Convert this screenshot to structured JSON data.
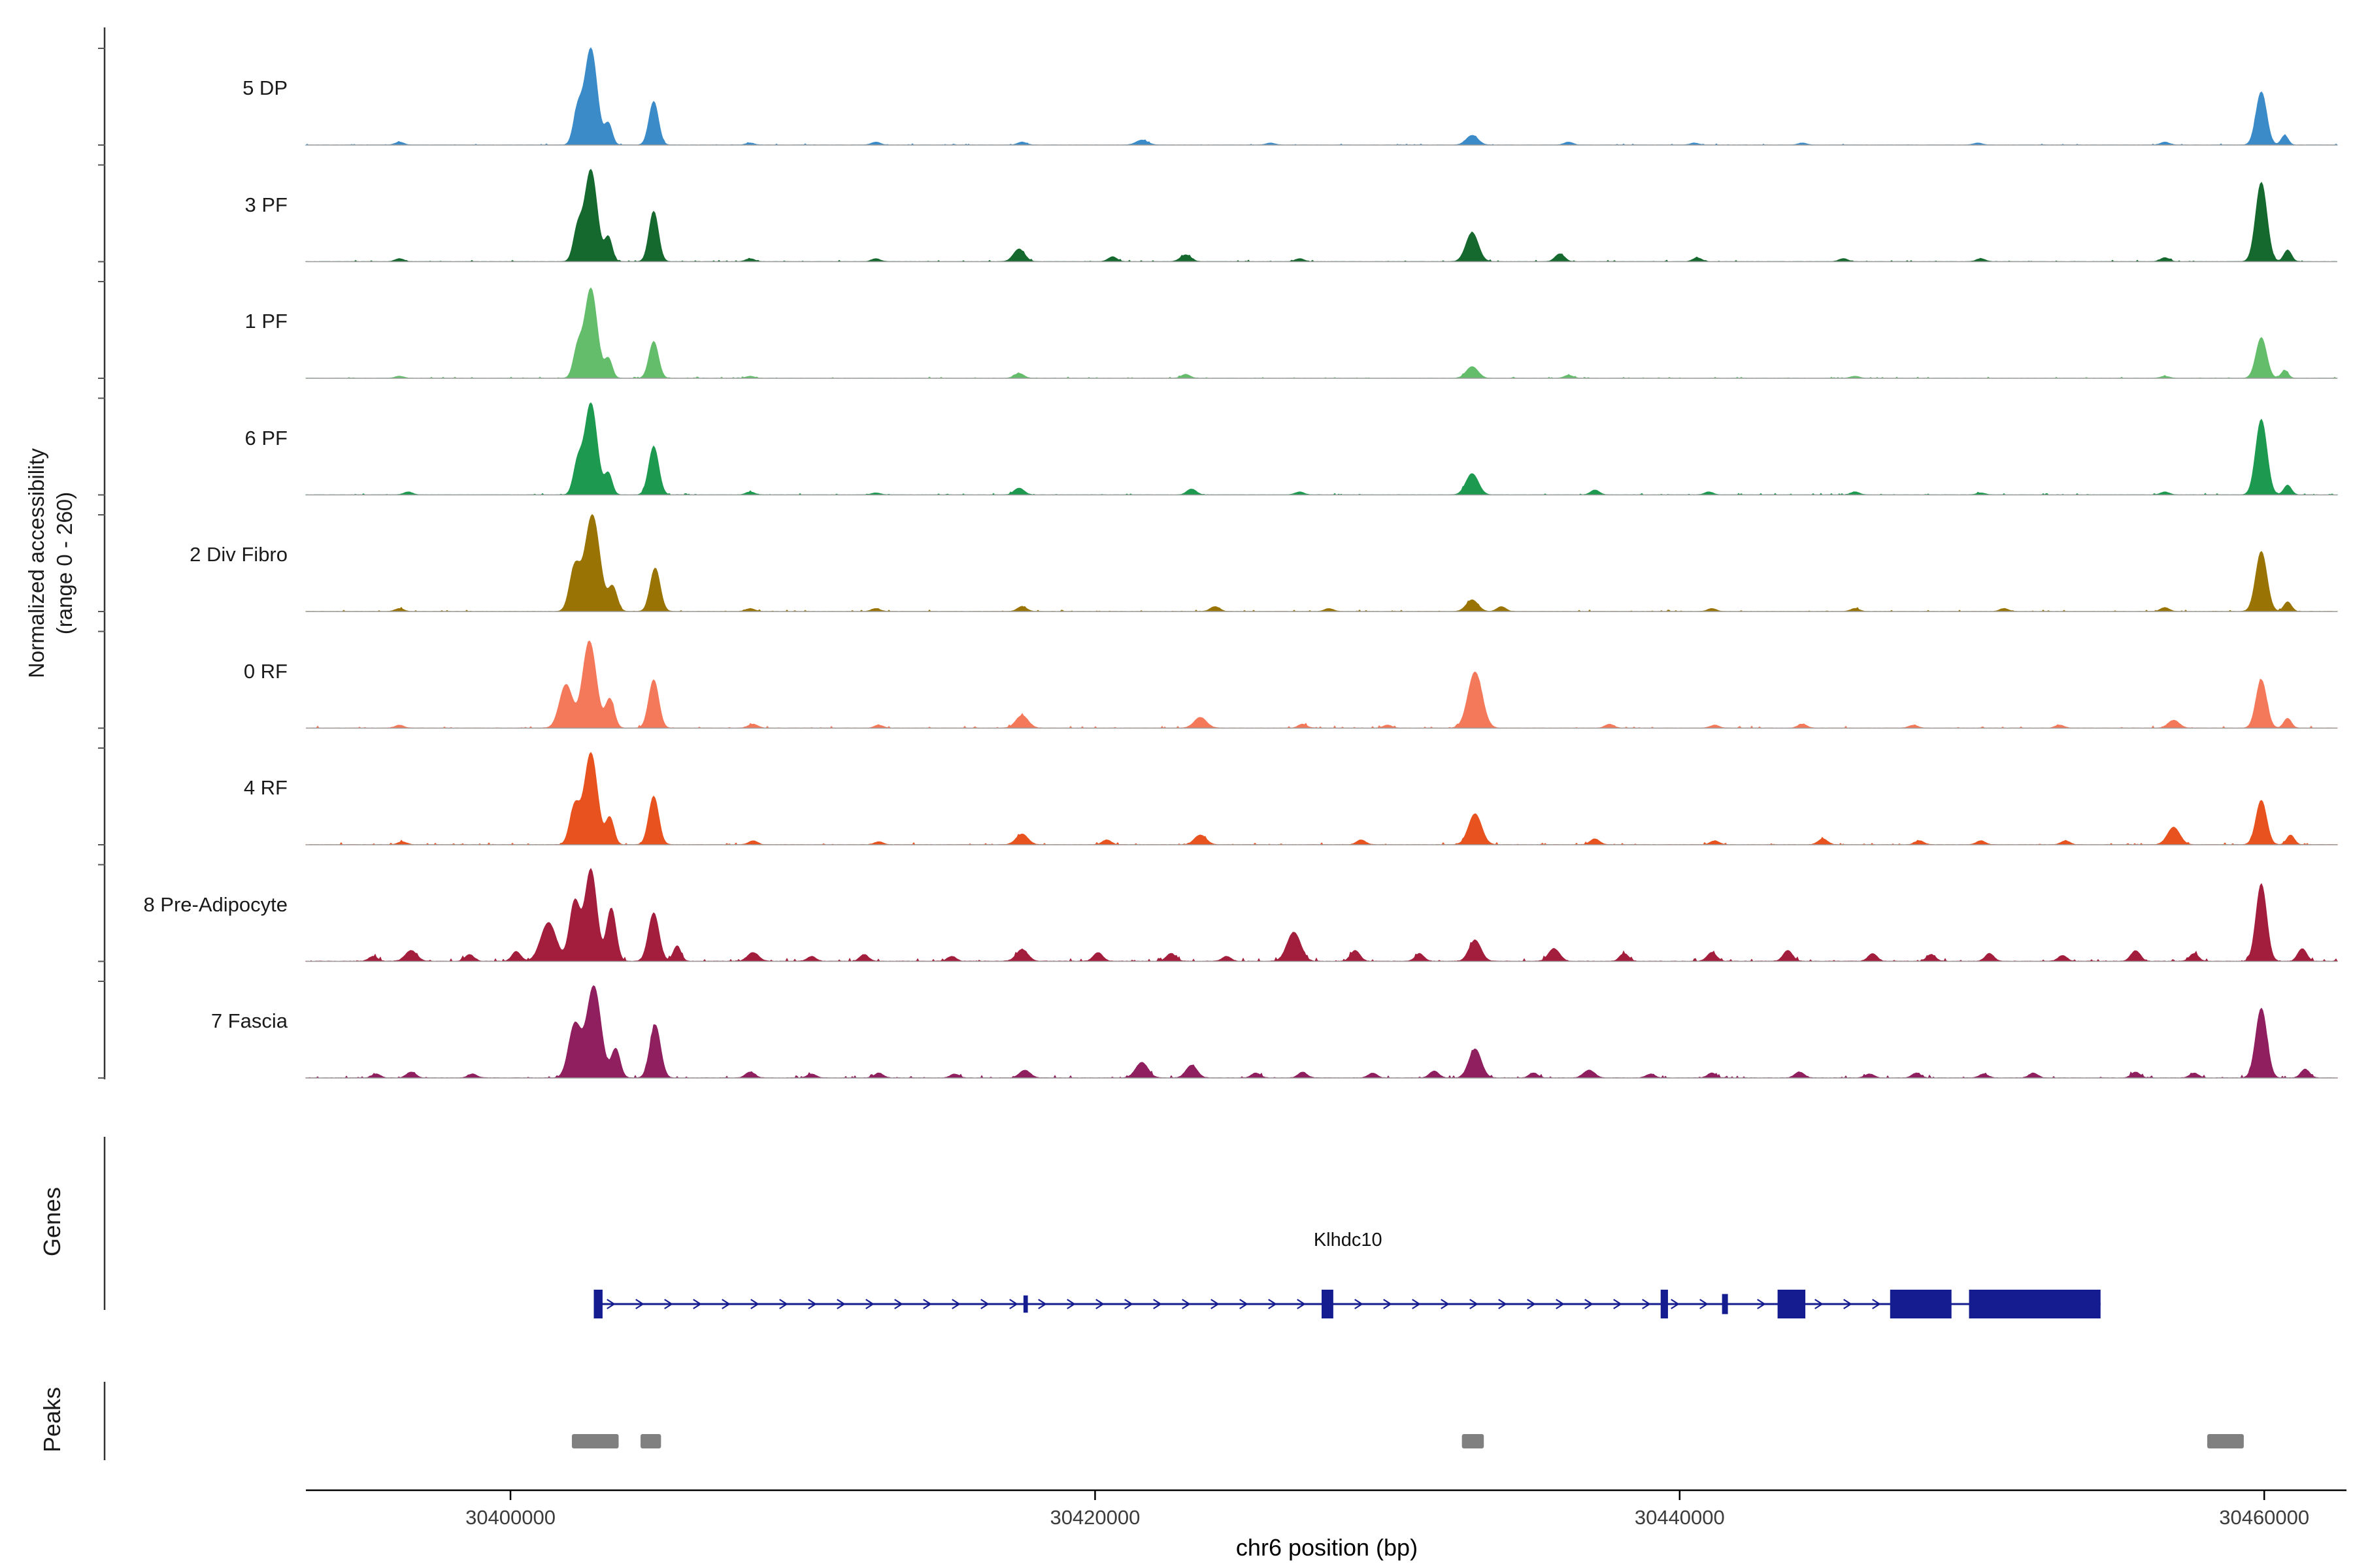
{
  "figure": {
    "y_axis_label_line1": "Normalized accessibility",
    "y_axis_label_line2": "(range 0 - 260)",
    "x_axis_title": "chr6 position (bp)",
    "genes_section_label": "Genes",
    "peaks_section_label": "Peaks"
  },
  "chart_data": {
    "type": "area",
    "title": "",
    "xlabel": "chr6 position (bp)",
    "ylabel": "Normalized accessibility (range 0 - 260)",
    "xlim": [
      30393000,
      30462500
    ],
    "x_ticks": [
      30400000,
      30420000,
      30440000,
      30460000
    ],
    "y_range_per_track": [
      0,
      260
    ],
    "legend_position": "left-track-labels",
    "grid": false,
    "peak_format": "[center_bp, sigma_bp, height_fraction_of_track_max]",
    "tracks": [
      {
        "label": "5 DP",
        "color": "#3b8bc9",
        "noise": 0.012,
        "peaks": [
          [
            30402300,
            150,
            0.35
          ],
          [
            30402750,
            210,
            1.0
          ],
          [
            30403350,
            130,
            0.22
          ],
          [
            30404900,
            160,
            0.45
          ],
          [
            30396200,
            150,
            0.03
          ],
          [
            30408200,
            150,
            0.02
          ],
          [
            30412500,
            150,
            0.03
          ],
          [
            30417500,
            150,
            0.03
          ],
          [
            30421600,
            200,
            0.05
          ],
          [
            30426000,
            150,
            0.02
          ],
          [
            30432900,
            200,
            0.1
          ],
          [
            30436200,
            150,
            0.03
          ],
          [
            30440500,
            150,
            0.02
          ],
          [
            30444200,
            150,
            0.02
          ],
          [
            30450200,
            150,
            0.02
          ],
          [
            30456600,
            150,
            0.03
          ],
          [
            30459900,
            180,
            0.55
          ],
          [
            30460700,
            120,
            0.1
          ]
        ]
      },
      {
        "label": "3 PF",
        "color": "#15692e",
        "noise": 0.015,
        "peaks": [
          [
            30402300,
            150,
            0.33
          ],
          [
            30402750,
            210,
            0.95
          ],
          [
            30403350,
            130,
            0.25
          ],
          [
            30404900,
            160,
            0.52
          ],
          [
            30396200,
            150,
            0.03
          ],
          [
            30408200,
            150,
            0.03
          ],
          [
            30412500,
            150,
            0.03
          ],
          [
            30417400,
            190,
            0.13
          ],
          [
            30420600,
            150,
            0.05
          ],
          [
            30423100,
            180,
            0.07
          ],
          [
            30427000,
            150,
            0.03
          ],
          [
            30432900,
            210,
            0.3
          ],
          [
            30435900,
            160,
            0.08
          ],
          [
            30440600,
            150,
            0.04
          ],
          [
            30445600,
            150,
            0.03
          ],
          [
            30450300,
            150,
            0.03
          ],
          [
            30456600,
            150,
            0.04
          ],
          [
            30459900,
            190,
            0.82
          ],
          [
            30460800,
            130,
            0.12
          ]
        ]
      },
      {
        "label": "1 PF",
        "color": "#63bd6a",
        "noise": 0.012,
        "peaks": [
          [
            30402300,
            150,
            0.3
          ],
          [
            30402750,
            210,
            0.93
          ],
          [
            30403350,
            130,
            0.2
          ],
          [
            30404900,
            160,
            0.38
          ],
          [
            30396200,
            150,
            0.02
          ],
          [
            30408200,
            150,
            0.02
          ],
          [
            30417400,
            160,
            0.05
          ],
          [
            30423100,
            150,
            0.04
          ],
          [
            30432900,
            200,
            0.12
          ],
          [
            30436200,
            150,
            0.03
          ],
          [
            30446000,
            150,
            0.02
          ],
          [
            30456600,
            150,
            0.02
          ],
          [
            30459900,
            180,
            0.42
          ],
          [
            30460700,
            120,
            0.08
          ]
        ]
      },
      {
        "label": "6 PF",
        "color": "#1d9a50",
        "noise": 0.015,
        "peaks": [
          [
            30402300,
            150,
            0.32
          ],
          [
            30402750,
            210,
            0.95
          ],
          [
            30403350,
            130,
            0.22
          ],
          [
            30404900,
            170,
            0.5
          ],
          [
            30396500,
            150,
            0.03
          ],
          [
            30408200,
            150,
            0.03
          ],
          [
            30412500,
            150,
            0.02
          ],
          [
            30417400,
            170,
            0.07
          ],
          [
            30423300,
            160,
            0.06
          ],
          [
            30427000,
            150,
            0.03
          ],
          [
            30432900,
            210,
            0.22
          ],
          [
            30437100,
            150,
            0.05
          ],
          [
            30441000,
            150,
            0.03
          ],
          [
            30446000,
            150,
            0.03
          ],
          [
            30450300,
            150,
            0.02
          ],
          [
            30456600,
            150,
            0.03
          ],
          [
            30459900,
            190,
            0.78
          ],
          [
            30460800,
            130,
            0.1
          ]
        ]
      },
      {
        "label": "2 Div Fibro",
        "color": "#997404",
        "noise": 0.015,
        "peaks": [
          [
            30402200,
            180,
            0.45
          ],
          [
            30402800,
            250,
            1.0
          ],
          [
            30403500,
            150,
            0.25
          ],
          [
            30404950,
            170,
            0.45
          ],
          [
            30396200,
            150,
            0.03
          ],
          [
            30408200,
            150,
            0.03
          ],
          [
            30412500,
            150,
            0.03
          ],
          [
            30417500,
            160,
            0.05
          ],
          [
            30424100,
            160,
            0.05
          ],
          [
            30428000,
            150,
            0.03
          ],
          [
            30432900,
            200,
            0.12
          ],
          [
            30433900,
            150,
            0.05
          ],
          [
            30441100,
            150,
            0.03
          ],
          [
            30446000,
            150,
            0.03
          ],
          [
            30451100,
            150,
            0.03
          ],
          [
            30456600,
            150,
            0.04
          ],
          [
            30459900,
            190,
            0.62
          ],
          [
            30460800,
            130,
            0.1
          ]
        ]
      },
      {
        "label": "0 RF",
        "color": "#f4795a",
        "noise": 0.02,
        "peaks": [
          [
            30401900,
            220,
            0.45
          ],
          [
            30402700,
            230,
            0.9
          ],
          [
            30403400,
            150,
            0.3
          ],
          [
            30404900,
            170,
            0.5
          ],
          [
            30396200,
            150,
            0.03
          ],
          [
            30408300,
            160,
            0.04
          ],
          [
            30412600,
            150,
            0.03
          ],
          [
            30417500,
            210,
            0.13
          ],
          [
            30423600,
            210,
            0.11
          ],
          [
            30427100,
            150,
            0.04
          ],
          [
            30430000,
            150,
            0.03
          ],
          [
            30433000,
            240,
            0.58
          ],
          [
            30437600,
            150,
            0.04
          ],
          [
            30441200,
            150,
            0.03
          ],
          [
            30444200,
            150,
            0.04
          ],
          [
            30448000,
            150,
            0.03
          ],
          [
            30453000,
            150,
            0.03
          ],
          [
            30456900,
            190,
            0.08
          ],
          [
            30459900,
            180,
            0.5
          ],
          [
            30460800,
            130,
            0.1
          ]
        ]
      },
      {
        "label": "4 RF",
        "color": "#e8521f",
        "noise": 0.02,
        "peaks": [
          [
            30402200,
            170,
            0.4
          ],
          [
            30402750,
            220,
            0.95
          ],
          [
            30403400,
            140,
            0.28
          ],
          [
            30404900,
            170,
            0.5
          ],
          [
            30396300,
            150,
            0.03
          ],
          [
            30408300,
            150,
            0.04
          ],
          [
            30412600,
            150,
            0.03
          ],
          [
            30417500,
            200,
            0.11
          ],
          [
            30420400,
            150,
            0.05
          ],
          [
            30423600,
            200,
            0.1
          ],
          [
            30429100,
            150,
            0.05
          ],
          [
            30433000,
            220,
            0.32
          ],
          [
            30437100,
            160,
            0.06
          ],
          [
            30441200,
            150,
            0.04
          ],
          [
            30444900,
            160,
            0.06
          ],
          [
            30448200,
            150,
            0.04
          ],
          [
            30450300,
            150,
            0.04
          ],
          [
            30453200,
            150,
            0.04
          ],
          [
            30456900,
            210,
            0.18
          ],
          [
            30459900,
            180,
            0.46
          ],
          [
            30460900,
            130,
            0.1
          ]
        ]
      },
      {
        "label": "8 Pre-Adipocyte",
        "color": "#a31e3c",
        "noise": 0.03,
        "peaks": [
          [
            30401300,
            260,
            0.4
          ],
          [
            30402200,
            180,
            0.62
          ],
          [
            30402750,
            200,
            0.95
          ],
          [
            30403450,
            160,
            0.55
          ],
          [
            30404900,
            180,
            0.5
          ],
          [
            30405700,
            130,
            0.16
          ],
          [
            30395300,
            150,
            0.05
          ],
          [
            30396600,
            200,
            0.11
          ],
          [
            30398600,
            150,
            0.07
          ],
          [
            30400200,
            150,
            0.1
          ],
          [
            30408300,
            190,
            0.09
          ],
          [
            30410300,
            150,
            0.05
          ],
          [
            30412100,
            150,
            0.07
          ],
          [
            30415100,
            150,
            0.05
          ],
          [
            30417500,
            200,
            0.12
          ],
          [
            30420100,
            160,
            0.09
          ],
          [
            30422600,
            160,
            0.08
          ],
          [
            30424500,
            150,
            0.05
          ],
          [
            30426800,
            230,
            0.3
          ],
          [
            30428900,
            160,
            0.11
          ],
          [
            30431100,
            150,
            0.08
          ],
          [
            30433000,
            200,
            0.22
          ],
          [
            30435700,
            190,
            0.13
          ],
          [
            30438100,
            150,
            0.08
          ],
          [
            30441100,
            160,
            0.09
          ],
          [
            30443700,
            160,
            0.11
          ],
          [
            30446600,
            150,
            0.08
          ],
          [
            30448600,
            150,
            0.07
          ],
          [
            30450600,
            150,
            0.08
          ],
          [
            30453100,
            150,
            0.06
          ],
          [
            30455600,
            160,
            0.11
          ],
          [
            30457600,
            150,
            0.08
          ],
          [
            30459900,
            180,
            0.8
          ],
          [
            30461300,
            150,
            0.13
          ]
        ]
      },
      {
        "label": "7 Fascia",
        "color": "#8f1f5e",
        "noise": 0.025,
        "peaks": [
          [
            30402200,
            210,
            0.55
          ],
          [
            30402850,
            240,
            0.95
          ],
          [
            30403600,
            150,
            0.3
          ],
          [
            30404950,
            180,
            0.55
          ],
          [
            30395400,
            150,
            0.04
          ],
          [
            30396600,
            160,
            0.06
          ],
          [
            30398700,
            150,
            0.04
          ],
          [
            30408200,
            160,
            0.06
          ],
          [
            30410300,
            150,
            0.04
          ],
          [
            30412600,
            150,
            0.05
          ],
          [
            30415200,
            150,
            0.04
          ],
          [
            30417600,
            180,
            0.08
          ],
          [
            30421600,
            210,
            0.16
          ],
          [
            30423300,
            190,
            0.13
          ],
          [
            30425500,
            150,
            0.05
          ],
          [
            30427100,
            150,
            0.06
          ],
          [
            30429500,
            150,
            0.05
          ],
          [
            30431600,
            160,
            0.07
          ],
          [
            30433000,
            210,
            0.3
          ],
          [
            30435000,
            150,
            0.05
          ],
          [
            30436900,
            190,
            0.08
          ],
          [
            30439000,
            150,
            0.04
          ],
          [
            30441100,
            150,
            0.05
          ],
          [
            30444100,
            160,
            0.06
          ],
          [
            30446500,
            150,
            0.04
          ],
          [
            30448100,
            150,
            0.05
          ],
          [
            30450400,
            150,
            0.04
          ],
          [
            30452100,
            150,
            0.05
          ],
          [
            30455600,
            150,
            0.06
          ],
          [
            30457600,
            150,
            0.05
          ],
          [
            30459900,
            190,
            0.72
          ],
          [
            30461400,
            150,
            0.09
          ]
        ]
      }
    ],
    "gene_track": {
      "label": "Genes",
      "gene": {
        "name": "Klhdc10",
        "color": "#141c8f",
        "strand": "+",
        "start": 30402900,
        "end": 30454400,
        "exons": [
          [
            30402850,
            30403150,
            1
          ],
          [
            30417550,
            30417700,
            0.6
          ],
          [
            30427750,
            30428150,
            1
          ],
          [
            30439350,
            30439600,
            1
          ],
          [
            30441450,
            30441650,
            0.7
          ],
          [
            30443350,
            30444300,
            1
          ],
          [
            30447200,
            30449300,
            1
          ],
          [
            30449900,
            30454400,
            1
          ]
        ]
      }
    },
    "peak_track": {
      "label": "Peaks",
      "color": "#808080",
      "intervals": [
        [
          30402100,
          30403700
        ],
        [
          30404450,
          30405150
        ],
        [
          30432550,
          30433300
        ],
        [
          30458050,
          30459300
        ]
      ]
    }
  }
}
